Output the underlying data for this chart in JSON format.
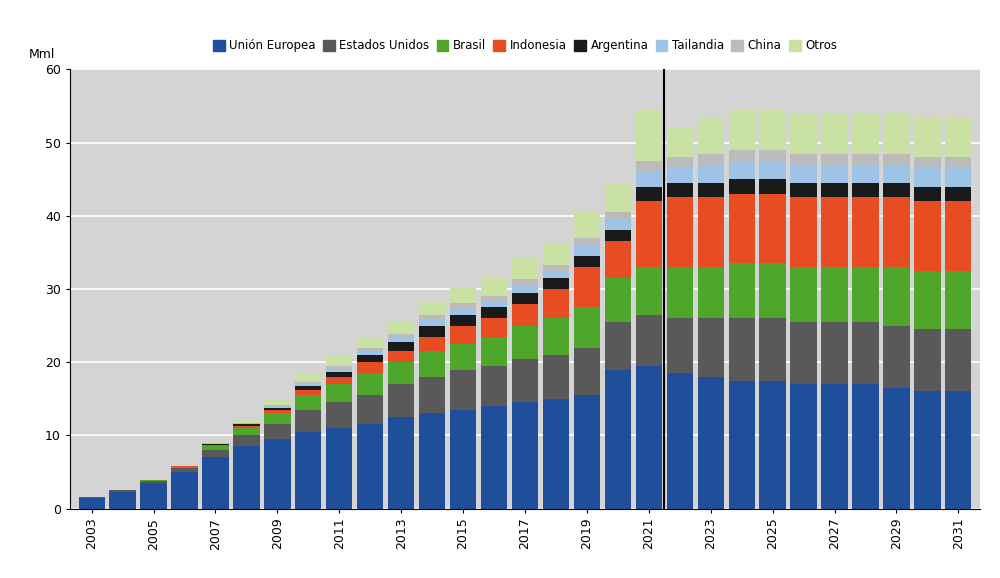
{
  "years": [
    2003,
    2004,
    2005,
    2006,
    2007,
    2008,
    2009,
    2010,
    2011,
    2012,
    2013,
    2014,
    2015,
    2016,
    2017,
    2018,
    2019,
    2020,
    2021,
    2022,
    2023,
    2024,
    2025,
    2026,
    2027,
    2028,
    2029,
    2030,
    2031
  ],
  "series": {
    "union_europea": [
      1.5,
      2.3,
      3.5,
      5.0,
      7.0,
      8.5,
      9.5,
      10.5,
      11.0,
      11.5,
      12.5,
      13.0,
      13.5,
      14.0,
      14.5,
      15.0,
      15.5,
      19.0,
      19.5,
      18.5,
      18.0,
      17.5,
      17.5,
      17.0,
      17.0,
      17.0,
      16.5,
      16.0,
      16.0
    ],
    "estados_unidos": [
      0.1,
      0.2,
      0.3,
      0.5,
      1.0,
      1.5,
      2.0,
      3.0,
      3.5,
      4.0,
      4.5,
      5.0,
      5.5,
      5.5,
      6.0,
      6.0,
      6.5,
      6.5,
      7.0,
      7.5,
      8.0,
      8.5,
      8.5,
      8.5,
      8.5,
      8.5,
      8.5,
      8.5,
      8.5
    ],
    "brasil": [
      0.0,
      0.0,
      0.1,
      0.2,
      0.5,
      1.0,
      1.5,
      2.0,
      2.5,
      3.0,
      3.0,
      3.5,
      3.5,
      4.0,
      4.5,
      5.0,
      5.5,
      6.0,
      6.5,
      7.0,
      7.0,
      7.5,
      7.5,
      7.5,
      7.5,
      7.5,
      8.0,
      8.0,
      8.0
    ],
    "indonesia": [
      0.0,
      0.0,
      0.0,
      0.1,
      0.2,
      0.3,
      0.5,
      0.7,
      1.0,
      1.5,
      1.5,
      2.0,
      2.5,
      2.5,
      3.0,
      4.0,
      5.5,
      5.0,
      9.0,
      9.5,
      9.5,
      9.5,
      9.5,
      9.5,
      9.5,
      9.5,
      9.5,
      9.5,
      9.5
    ],
    "argentina": [
      0.0,
      0.0,
      0.0,
      0.0,
      0.1,
      0.2,
      0.3,
      0.5,
      0.7,
      1.0,
      1.2,
      1.5,
      1.5,
      1.5,
      1.5,
      1.5,
      1.5,
      1.5,
      2.0,
      2.0,
      2.0,
      2.0,
      2.0,
      2.0,
      2.0,
      2.0,
      2.0,
      2.0,
      2.0
    ],
    "tailandia": [
      0.0,
      0.0,
      0.0,
      0.0,
      0.0,
      0.1,
      0.2,
      0.3,
      0.4,
      0.5,
      0.6,
      0.7,
      0.8,
      0.8,
      1.0,
      1.0,
      1.5,
      1.5,
      2.0,
      2.0,
      2.5,
      2.5,
      2.5,
      2.5,
      2.5,
      2.5,
      2.5,
      2.5,
      2.5
    ],
    "china": [
      0.0,
      0.0,
      0.0,
      0.0,
      0.1,
      0.1,
      0.2,
      0.3,
      0.4,
      0.5,
      0.6,
      0.7,
      0.8,
      0.8,
      0.8,
      0.8,
      1.0,
      1.0,
      1.5,
      1.5,
      1.5,
      1.5,
      1.5,
      1.5,
      1.5,
      1.5,
      1.5,
      1.5,
      1.5
    ],
    "otros": [
      0.0,
      0.0,
      0.1,
      0.2,
      0.3,
      0.5,
      0.8,
      1.2,
      1.4,
      1.5,
      1.6,
      1.8,
      2.0,
      2.4,
      3.0,
      3.0,
      3.5,
      4.0,
      7.0,
      4.0,
      5.0,
      5.5,
      5.5,
      5.5,
      5.5,
      5.5,
      5.5,
      5.5,
      5.5
    ]
  },
  "colors": {
    "union_europea": "#1F4E9B",
    "estados_unidos": "#595959",
    "brasil": "#4EA72A",
    "indonesia": "#E84C22",
    "argentina": "#1A1A1A",
    "tailandia": "#9DC3E6",
    "china": "#BBBBBB",
    "otros": "#C9E2A3"
  },
  "labels": {
    "union_europea": "Unión Europea",
    "estados_unidos": "Estados Unidos",
    "brasil": "Brasil",
    "indonesia": "Indonesia",
    "argentina": "Argentina",
    "tailandia": "Tailandia",
    "china": "China",
    "otros": "Otros"
  },
  "ylabel": "Mml",
  "ylim": [
    0,
    60
  ],
  "yticks": [
    0,
    10,
    20,
    30,
    40,
    50,
    60
  ],
  "divider_year": 2021.5,
  "plot_bg_color": "#D4D4D4",
  "fig_bg_color": "#FFFFFF",
  "grid_color": "#FFFFFF"
}
